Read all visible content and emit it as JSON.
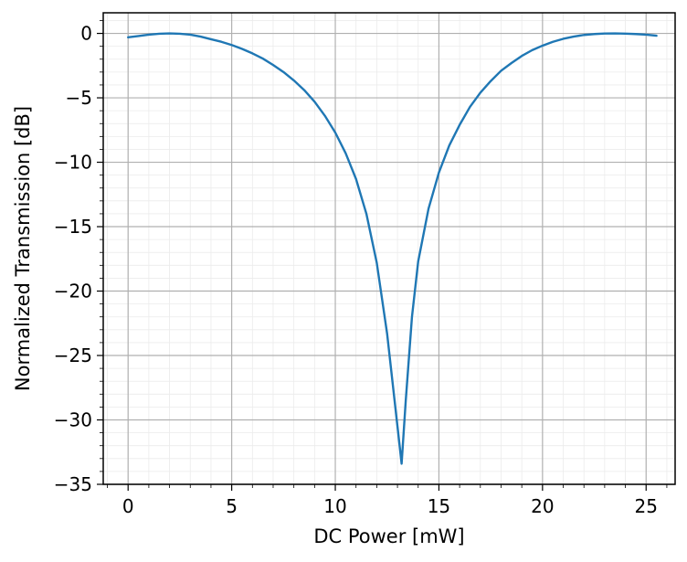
{
  "chart_data": {
    "type": "line",
    "title": "",
    "xlabel": "DC Power [mW]",
    "ylabel": "Normalized Transmission [dB]",
    "xlim": [
      -1.2,
      26.4
    ],
    "ylim": [
      -35,
      1.6
    ],
    "grid": true,
    "minor_grid": true,
    "legend": "none",
    "line_color": "#1f77b4",
    "x_ticks": [
      0,
      5,
      10,
      15,
      20,
      25
    ],
    "x_tick_labels": [
      "0",
      "5",
      "10",
      "15",
      "20",
      "25"
    ],
    "y_ticks": [
      0,
      -5,
      -10,
      -15,
      -20,
      -25,
      -30,
      -35
    ],
    "y_tick_labels": [
      "0",
      "−5",
      "−10",
      "−15",
      "−20",
      "−25",
      "−30",
      "−35"
    ],
    "series": [
      {
        "x": [
          0,
          0.5,
          1,
          1.5,
          2,
          2.5,
          3,
          3.5,
          4,
          4.5,
          5,
          5.5,
          6,
          6.5,
          7,
          7.5,
          8,
          8.5,
          9,
          9.5,
          10,
          10.5,
          11,
          11.5,
          12,
          12.5,
          13,
          13.2,
          13.4,
          13.7,
          14,
          14.5,
          15,
          15.5,
          16,
          16.5,
          17,
          17.5,
          18,
          18.5,
          19,
          19.5,
          20,
          20.5,
          21,
          21.5,
          22,
          22.5,
          23,
          23.5,
          24,
          24.5,
          25,
          25.5
        ],
        "y": [
          -0.3,
          -0.2,
          -0.1,
          -0.03,
          0,
          -0.03,
          -0.1,
          -0.25,
          -0.45,
          -0.65,
          -0.9,
          -1.2,
          -1.55,
          -1.95,
          -2.45,
          -3.0,
          -3.65,
          -4.4,
          -5.3,
          -6.4,
          -7.7,
          -9.3,
          -11.3,
          -14.0,
          -17.8,
          -23.3,
          -30.5,
          -33.4,
          -28.5,
          -22.0,
          -17.7,
          -13.6,
          -10.8,
          -8.7,
          -7.1,
          -5.7,
          -4.6,
          -3.7,
          -2.9,
          -2.3,
          -1.75,
          -1.3,
          -0.95,
          -0.65,
          -0.42,
          -0.25,
          -0.12,
          -0.05,
          -0.01,
          0,
          -0.02,
          -0.05,
          -0.1,
          -0.18
        ]
      }
    ]
  }
}
